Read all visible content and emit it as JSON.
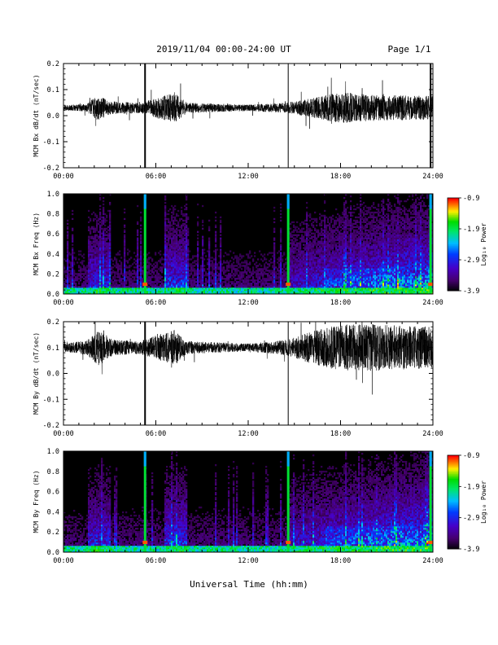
{
  "header": {
    "title": "2019/11/04  00:00-24:00 UT",
    "page": "Page 1/1"
  },
  "xaxis_title": "Universal Time (hh:mm)",
  "chart_data": [
    {
      "type": "line",
      "ylabel": "MCM Bx dB/dt (nT/sec)",
      "xlim": [
        0,
        24
      ],
      "ylim": [
        -0.2,
        0.2
      ],
      "yticks": [
        "-0.2",
        "-0.1",
        "0.0",
        "0.1",
        "0.2"
      ],
      "xticks": [
        "00:00",
        "06:00",
        "12:00",
        "18:00",
        "24:00"
      ],
      "baseline": 0.03,
      "spikes_hours": [
        5.3,
        14.6,
        23.85
      ],
      "envelope": [
        {
          "x": 0,
          "amp": 0.01
        },
        {
          "x": 1.5,
          "amp": 0.015
        },
        {
          "x": 2.2,
          "amp": 0.05
        },
        {
          "x": 3,
          "amp": 0.025
        },
        {
          "x": 5,
          "amp": 0.02
        },
        {
          "x": 7.2,
          "amp": 0.06
        },
        {
          "x": 8,
          "amp": 0.02
        },
        {
          "x": 12,
          "amp": 0.012
        },
        {
          "x": 14.5,
          "amp": 0.02
        },
        {
          "x": 16,
          "amp": 0.035
        },
        {
          "x": 18,
          "amp": 0.06
        },
        {
          "x": 20,
          "amp": 0.05
        },
        {
          "x": 24,
          "amp": 0.045
        }
      ]
    },
    {
      "type": "heatmap",
      "ylabel": "MCM Bx Freq (Hz)",
      "xlim": [
        0,
        24
      ],
      "ylim": [
        0,
        1.0
      ],
      "yticks": [
        "0.0",
        "0.2",
        "0.4",
        "0.6",
        "0.8",
        "1.0"
      ],
      "xticks": [
        "00:00",
        "06:00",
        "12:00",
        "18:00",
        "24:00"
      ],
      "colorbar_label": "Log₁₀ Power",
      "colorbar_ticks": [
        "-0.9",
        "-1.9",
        "-2.9",
        "-3.9"
      ],
      "colorbar_range": [
        -3.9,
        -0.9
      ],
      "spikes_hours": [
        5.3,
        14.6,
        23.85
      ]
    },
    {
      "type": "line",
      "ylabel": "MCM By dB/dt (nT/sec)",
      "xlim": [
        0,
        24
      ],
      "ylim": [
        -0.2,
        0.2
      ],
      "yticks": [
        "-0.2",
        "-0.1",
        "0.0",
        "0.1",
        "0.2"
      ],
      "xticks": [
        "00:00",
        "06:00",
        "12:00",
        "18:00",
        "24:00"
      ],
      "baseline": 0.1,
      "spikes_hours": [
        5.3,
        14.6
      ],
      "envelope": [
        {
          "x": 0,
          "amp": 0.015
        },
        {
          "x": 1.5,
          "amp": 0.03
        },
        {
          "x": 2.3,
          "amp": 0.07
        },
        {
          "x": 3.2,
          "amp": 0.03
        },
        {
          "x": 5,
          "amp": 0.025
        },
        {
          "x": 7.2,
          "amp": 0.07
        },
        {
          "x": 8,
          "amp": 0.025
        },
        {
          "x": 12,
          "amp": 0.015
        },
        {
          "x": 14.5,
          "amp": 0.03
        },
        {
          "x": 16,
          "amp": 0.06
        },
        {
          "x": 18,
          "amp": 0.09
        },
        {
          "x": 20,
          "amp": 0.09
        },
        {
          "x": 24,
          "amp": 0.08
        }
      ]
    },
    {
      "type": "heatmap",
      "ylabel": "MCM By Freq (Hz)",
      "xlim": [
        0,
        24
      ],
      "ylim": [
        0,
        1.0
      ],
      "yticks": [
        "0.0",
        "0.2",
        "0.4",
        "0.6",
        "0.8",
        "1.0"
      ],
      "xticks": [
        "00:00",
        "06:00",
        "12:00",
        "18:00",
        "24:00"
      ],
      "colorbar_label": "Log₁₀ Power",
      "colorbar_ticks": [
        "-0.9",
        "-1.9",
        "-2.9",
        "-3.9"
      ],
      "colorbar_range": [
        -3.9,
        -0.9
      ],
      "spikes_hours": [
        5.3,
        14.6,
        23.85
      ]
    }
  ]
}
